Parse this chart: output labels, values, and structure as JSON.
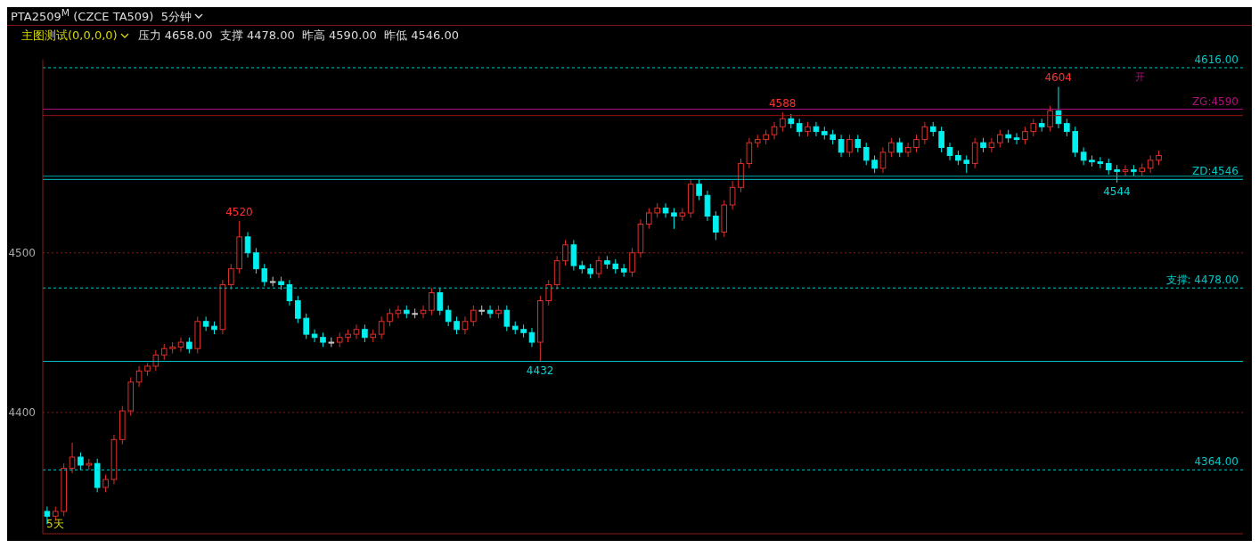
{
  "chart_data": {
    "type": "candlestick",
    "title": "PTA2509$^{M}$ (CZCE TA509)  5分钟",
    "subtitle": "主图测试(0,0,0,0)",
    "categories": [
      null,
      null,
      null,
      null,
      null,
      null,
      null,
      null,
      null,
      null,
      null,
      null,
      null,
      null,
      null,
      null,
      null,
      null,
      null,
      null,
      null,
      null,
      null,
      null,
      null,
      null,
      null,
      null,
      null,
      null,
      null,
      null,
      null,
      null,
      null,
      null,
      null,
      null,
      null,
      null,
      null,
      null,
      null,
      null,
      null,
      null,
      null,
      null,
      null,
      null,
      null,
      null,
      null,
      null,
      null,
      null,
      null,
      null,
      null,
      null,
      null,
      null,
      null,
      null,
      null,
      null,
      null,
      null,
      null,
      null,
      null,
      null,
      null,
      null,
      null,
      null,
      null,
      null,
      null,
      null,
      null,
      null,
      null,
      null,
      null,
      null,
      null,
      null,
      null,
      null,
      null,
      null,
      null,
      null,
      null,
      null,
      null,
      null,
      null,
      null,
      null,
      null,
      null,
      null,
      null,
      null,
      null,
      null,
      null,
      null,
      null,
      null,
      null,
      null,
      null,
      null,
      null,
      null,
      null,
      null,
      null,
      null,
      null,
      null,
      null,
      null,
      null,
      null,
      null,
      null,
      null,
      null,
      null,
      null
    ],
    "ohlc": [
      [
        4338,
        4341,
        4330,
        4335
      ],
      [
        4335,
        4341,
        4332,
        4338
      ],
      [
        4338,
        4368,
        4335,
        4365
      ],
      [
        4365,
        4381,
        4362,
        4372
      ],
      [
        4372,
        4375,
        4364,
        4367
      ],
      [
        4367,
        4371,
        4364,
        4368
      ],
      [
        4368,
        4371,
        4350,
        4353
      ],
      [
        4353,
        4361,
        4350,
        4358
      ],
      [
        4358,
        4386,
        4355,
        4383
      ],
      [
        4383,
        4404,
        4380,
        4401
      ],
      [
        4401,
        4422,
        4398,
        4419
      ],
      [
        4419,
        4429,
        4416,
        4426
      ],
      [
        4426,
        4431,
        4423,
        4429
      ],
      [
        4429,
        4439,
        4426,
        4436
      ],
      [
        4436,
        4443,
        4433,
        4440
      ],
      [
        4440,
        4444,
        4437,
        4441
      ],
      [
        4441,
        4447,
        4438,
        4444
      ],
      [
        4444,
        4447,
        4437,
        4440
      ],
      [
        4440,
        4460,
        4437,
        4457
      ],
      [
        4457,
        4460,
        4451,
        4454
      ],
      [
        4454,
        4457,
        4449,
        4452
      ],
      [
        4452,
        4483,
        4449,
        4480
      ],
      [
        4480,
        4493,
        4477,
        4490
      ],
      [
        4490,
        4520,
        4487,
        4510
      ],
      [
        4510,
        4513,
        4497,
        4500
      ],
      [
        4500,
        4503,
        4487,
        4490
      ],
      [
        4490,
        4493,
        4479,
        4482
      ],
      [
        4482,
        4485,
        4479,
        4482
      ],
      [
        4482,
        4485,
        4477,
        4480
      ],
      [
        4480,
        4483,
        4467,
        4470
      ],
      [
        4470,
        4473,
        4456,
        4459
      ],
      [
        4459,
        4462,
        4446,
        4449
      ],
      [
        4449,
        4452,
        4444,
        4447
      ],
      [
        4447,
        4450,
        4441,
        4444
      ],
      [
        4444,
        4447,
        4441,
        4444
      ],
      [
        4444,
        4450,
        4441,
        4447
      ],
      [
        4447,
        4452,
        4444,
        4449
      ],
      [
        4449,
        4455,
        4446,
        4452
      ],
      [
        4452,
        4455,
        4444,
        4447
      ],
      [
        4447,
        4452,
        4444,
        4449
      ],
      [
        4449,
        4460,
        4446,
        4457
      ],
      [
        4457,
        4465,
        4454,
        4462
      ],
      [
        4462,
        4467,
        4459,
        4464
      ],
      [
        4464,
        4467,
        4459,
        4462
      ],
      [
        4462,
        4465,
        4459,
        4462
      ],
      [
        4462,
        4467,
        4459,
        4464
      ],
      [
        4464,
        4478,
        4461,
        4475
      ],
      [
        4475,
        4478,
        4461,
        4464
      ],
      [
        4464,
        4467,
        4454,
        4457
      ],
      [
        4457,
        4460,
        4449,
        4452
      ],
      [
        4452,
        4460,
        4449,
        4457
      ],
      [
        4457,
        4467,
        4454,
        4464
      ],
      [
        4464,
        4467,
        4461,
        4464
      ],
      [
        4464,
        4467,
        4459,
        4462
      ],
      [
        4462,
        4467,
        4459,
        4464
      ],
      [
        4464,
        4467,
        4451,
        4454
      ],
      [
        4454,
        4457,
        4449,
        4452
      ],
      [
        4452,
        4455,
        4447,
        4450
      ],
      [
        4450,
        4453,
        4441,
        4444
      ],
      [
        4444,
        4473,
        4432,
        4470
      ],
      [
        4470,
        4483,
        4467,
        4480
      ],
      [
        4480,
        4498,
        4477,
        4495
      ],
      [
        4495,
        4508,
        4492,
        4505
      ],
      [
        4505,
        4508,
        4489,
        4492
      ],
      [
        4492,
        4495,
        4487,
        4490
      ],
      [
        4490,
        4493,
        4484,
        4487
      ],
      [
        4487,
        4498,
        4484,
        4495
      ],
      [
        4495,
        4498,
        4490,
        4493
      ],
      [
        4493,
        4496,
        4487,
        4490
      ],
      [
        4490,
        4493,
        4485,
        4488
      ],
      [
        4488,
        4503,
        4485,
        4500
      ],
      [
        4500,
        4521,
        4497,
        4518
      ],
      [
        4518,
        4528,
        4515,
        4525
      ],
      [
        4525,
        4531,
        4522,
        4528
      ],
      [
        4528,
        4531,
        4522,
        4525
      ],
      [
        4525,
        4528,
        4515,
        4523
      ],
      [
        4523,
        4528,
        4520,
        4525
      ],
      [
        4525,
        4546,
        4522,
        4543
      ],
      [
        4543,
        4546,
        4533,
        4536
      ],
      [
        4536,
        4539,
        4520,
        4523
      ],
      [
        4523,
        4526,
        4508,
        4513
      ],
      [
        4513,
        4533,
        4510,
        4530
      ],
      [
        4530,
        4545,
        4527,
        4541
      ],
      [
        4541,
        4559,
        4538,
        4556
      ],
      [
        4556,
        4572,
        4553,
        4569
      ],
      [
        4569,
        4574,
        4566,
        4571
      ],
      [
        4571,
        4577,
        4568,
        4574
      ],
      [
        4574,
        4582,
        4571,
        4579
      ],
      [
        4579,
        4588,
        4576,
        4584
      ],
      [
        4584,
        4587,
        4578,
        4581
      ],
      [
        4581,
        4584,
        4573,
        4576
      ],
      [
        4576,
        4582,
        4573,
        4579
      ],
      [
        4579,
        4582,
        4573,
        4576
      ],
      [
        4576,
        4579,
        4571,
        4574
      ],
      [
        4574,
        4577,
        4568,
        4571
      ],
      [
        4571,
        4574,
        4560,
        4563
      ],
      [
        4563,
        4574,
        4560,
        4571
      ],
      [
        4571,
        4574,
        4563,
        4566
      ],
      [
        4566,
        4569,
        4555,
        4558
      ],
      [
        4558,
        4561,
        4550,
        4553
      ],
      [
        4553,
        4566,
        4550,
        4563
      ],
      [
        4563,
        4572,
        4560,
        4569
      ],
      [
        4569,
        4572,
        4560,
        4563
      ],
      [
        4563,
        4569,
        4560,
        4566
      ],
      [
        4566,
        4574,
        4563,
        4571
      ],
      [
        4571,
        4582,
        4568,
        4579
      ],
      [
        4579,
        4582,
        4573,
        4576
      ],
      [
        4576,
        4579,
        4563,
        4566
      ],
      [
        4566,
        4569,
        4558,
        4561
      ],
      [
        4561,
        4564,
        4555,
        4558
      ],
      [
        4558,
        4561,
        4550,
        4556
      ],
      [
        4556,
        4572,
        4553,
        4569
      ],
      [
        4569,
        4572,
        4563,
        4566
      ],
      [
        4566,
        4572,
        4563,
        4569
      ],
      [
        4569,
        4577,
        4566,
        4574
      ],
      [
        4574,
        4577,
        4569,
        4572
      ],
      [
        4572,
        4575,
        4568,
        4571
      ],
      [
        4571,
        4579,
        4568,
        4576
      ],
      [
        4576,
        4584,
        4573,
        4581
      ],
      [
        4581,
        4584,
        4576,
        4579
      ],
      [
        4579,
        4592,
        4576,
        4589
      ],
      [
        4589,
        4604,
        4578,
        4581
      ],
      [
        4581,
        4584,
        4573,
        4576
      ],
      [
        4576,
        4579,
        4560,
        4563
      ],
      [
        4563,
        4566,
        4555,
        4558
      ],
      [
        4558,
        4561,
        4554,
        4557
      ],
      [
        4557,
        4560,
        4553,
        4556
      ],
      [
        4556,
        4559,
        4549,
        4552
      ],
      [
        4552,
        4555,
        4544,
        4551
      ],
      [
        4551,
        4555,
        4548,
        4552
      ],
      [
        4552,
        4555,
        4548,
        4551
      ],
      [
        4551,
        4556,
        4548,
        4553
      ],
      [
        4553,
        4561,
        4550,
        4558
      ],
      [
        4558,
        4564,
        4555,
        4561
      ]
    ],
    "ylim": [
      4324,
      4621
    ],
    "yticks": [
      4400,
      4500
    ],
    "grid": "y",
    "tick_labels": "y",
    "ref_lines": [
      {
        "axis": "y",
        "value": 4616,
        "label": "4616.00",
        "color": "#00c8c8",
        "line_style": "dashed"
      },
      {
        "axis": "y",
        "value": 4590,
        "label": "ZG:4590",
        "color": "#b0107a",
        "line_style": "solid"
      },
      {
        "axis": "y",
        "value": 4586,
        "label": null,
        "color": "#a01010",
        "line_style": "solid"
      },
      {
        "axis": "y",
        "value": 4548,
        "label": null,
        "color": "#00a8a8",
        "line_style": "solid"
      },
      {
        "axis": "y",
        "value": 4546,
        "label": "ZD:4546",
        "color": "#00c8c8",
        "line_style": "solid"
      },
      {
        "axis": "y",
        "value": 4478,
        "label": "支撑: 4478.00",
        "color": "#00c8c8",
        "line_style": "dashed"
      },
      {
        "axis": "y",
        "value": 4432,
        "label": null,
        "color": "#00c8c8",
        "line_style": "solid"
      },
      {
        "axis": "y",
        "value": 4364,
        "label": "4364.00",
        "color": "#00c8c8",
        "line_style": "dashed"
      }
    ],
    "annotations": [
      "压力 4658.00  支撑 4478.00  昨高 4590.00  昨低 4546.00",
      "5天",
      "开",
      {
        "text": "4520",
        "y": 4520
      },
      {
        "text": "4432",
        "y": 4432
      },
      {
        "text": "4588",
        "y": 4588
      },
      {
        "text": "4604",
        "y": 4604
      },
      {
        "text": "4544",
        "y": 4544
      }
    ]
  }
}
